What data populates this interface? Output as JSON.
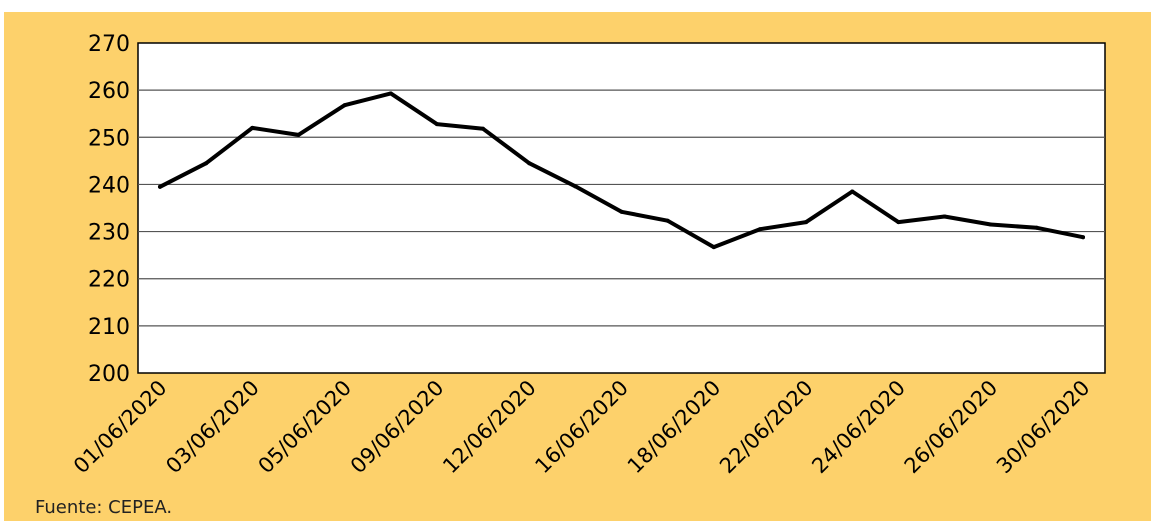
{
  "figure_title": "",
  "source_note": "Fuente: CEPEA.",
  "chart_data": {
    "type": "line",
    "title": "",
    "xlabel": "",
    "ylabel": "",
    "ylim": [
      200,
      270
    ],
    "yticks": [
      200,
      210,
      220,
      230,
      240,
      250,
      260,
      270
    ],
    "grid": true,
    "legend": "none",
    "x_tick_labels": [
      "01/06/2020",
      "03/06/2020",
      "05/06/2020",
      "09/06/2020",
      "12/06/2020",
      "16/06/2020",
      "18/06/2020",
      "22/06/2020",
      "24/06/2020",
      "26/06/2020",
      "30/06/2020"
    ],
    "x": [
      "01/06/2020",
      "02/06/2020",
      "03/06/2020",
      "04/06/2020",
      "05/06/2020",
      "08/06/2020",
      "09/06/2020",
      "10/06/2020",
      "12/06/2020",
      "15/06/2020",
      "16/06/2020",
      "17/06/2020",
      "18/06/2020",
      "19/06/2020",
      "22/06/2020",
      "23/06/2020",
      "24/06/2020",
      "25/06/2020",
      "26/06/2020",
      "29/06/2020",
      "30/06/2020"
    ],
    "values": [
      239.5,
      244.5,
      252,
      250.5,
      256.8,
      259.3,
      252.8,
      251.8,
      244.5,
      239.6,
      234.2,
      232.3,
      226.7,
      230.5,
      232,
      238.5,
      232,
      233.2,
      231.5,
      230.8,
      228.8
    ],
    "line_color": "#000000",
    "plot_background": "#ffffff",
    "page_background": "#fdd16b"
  }
}
